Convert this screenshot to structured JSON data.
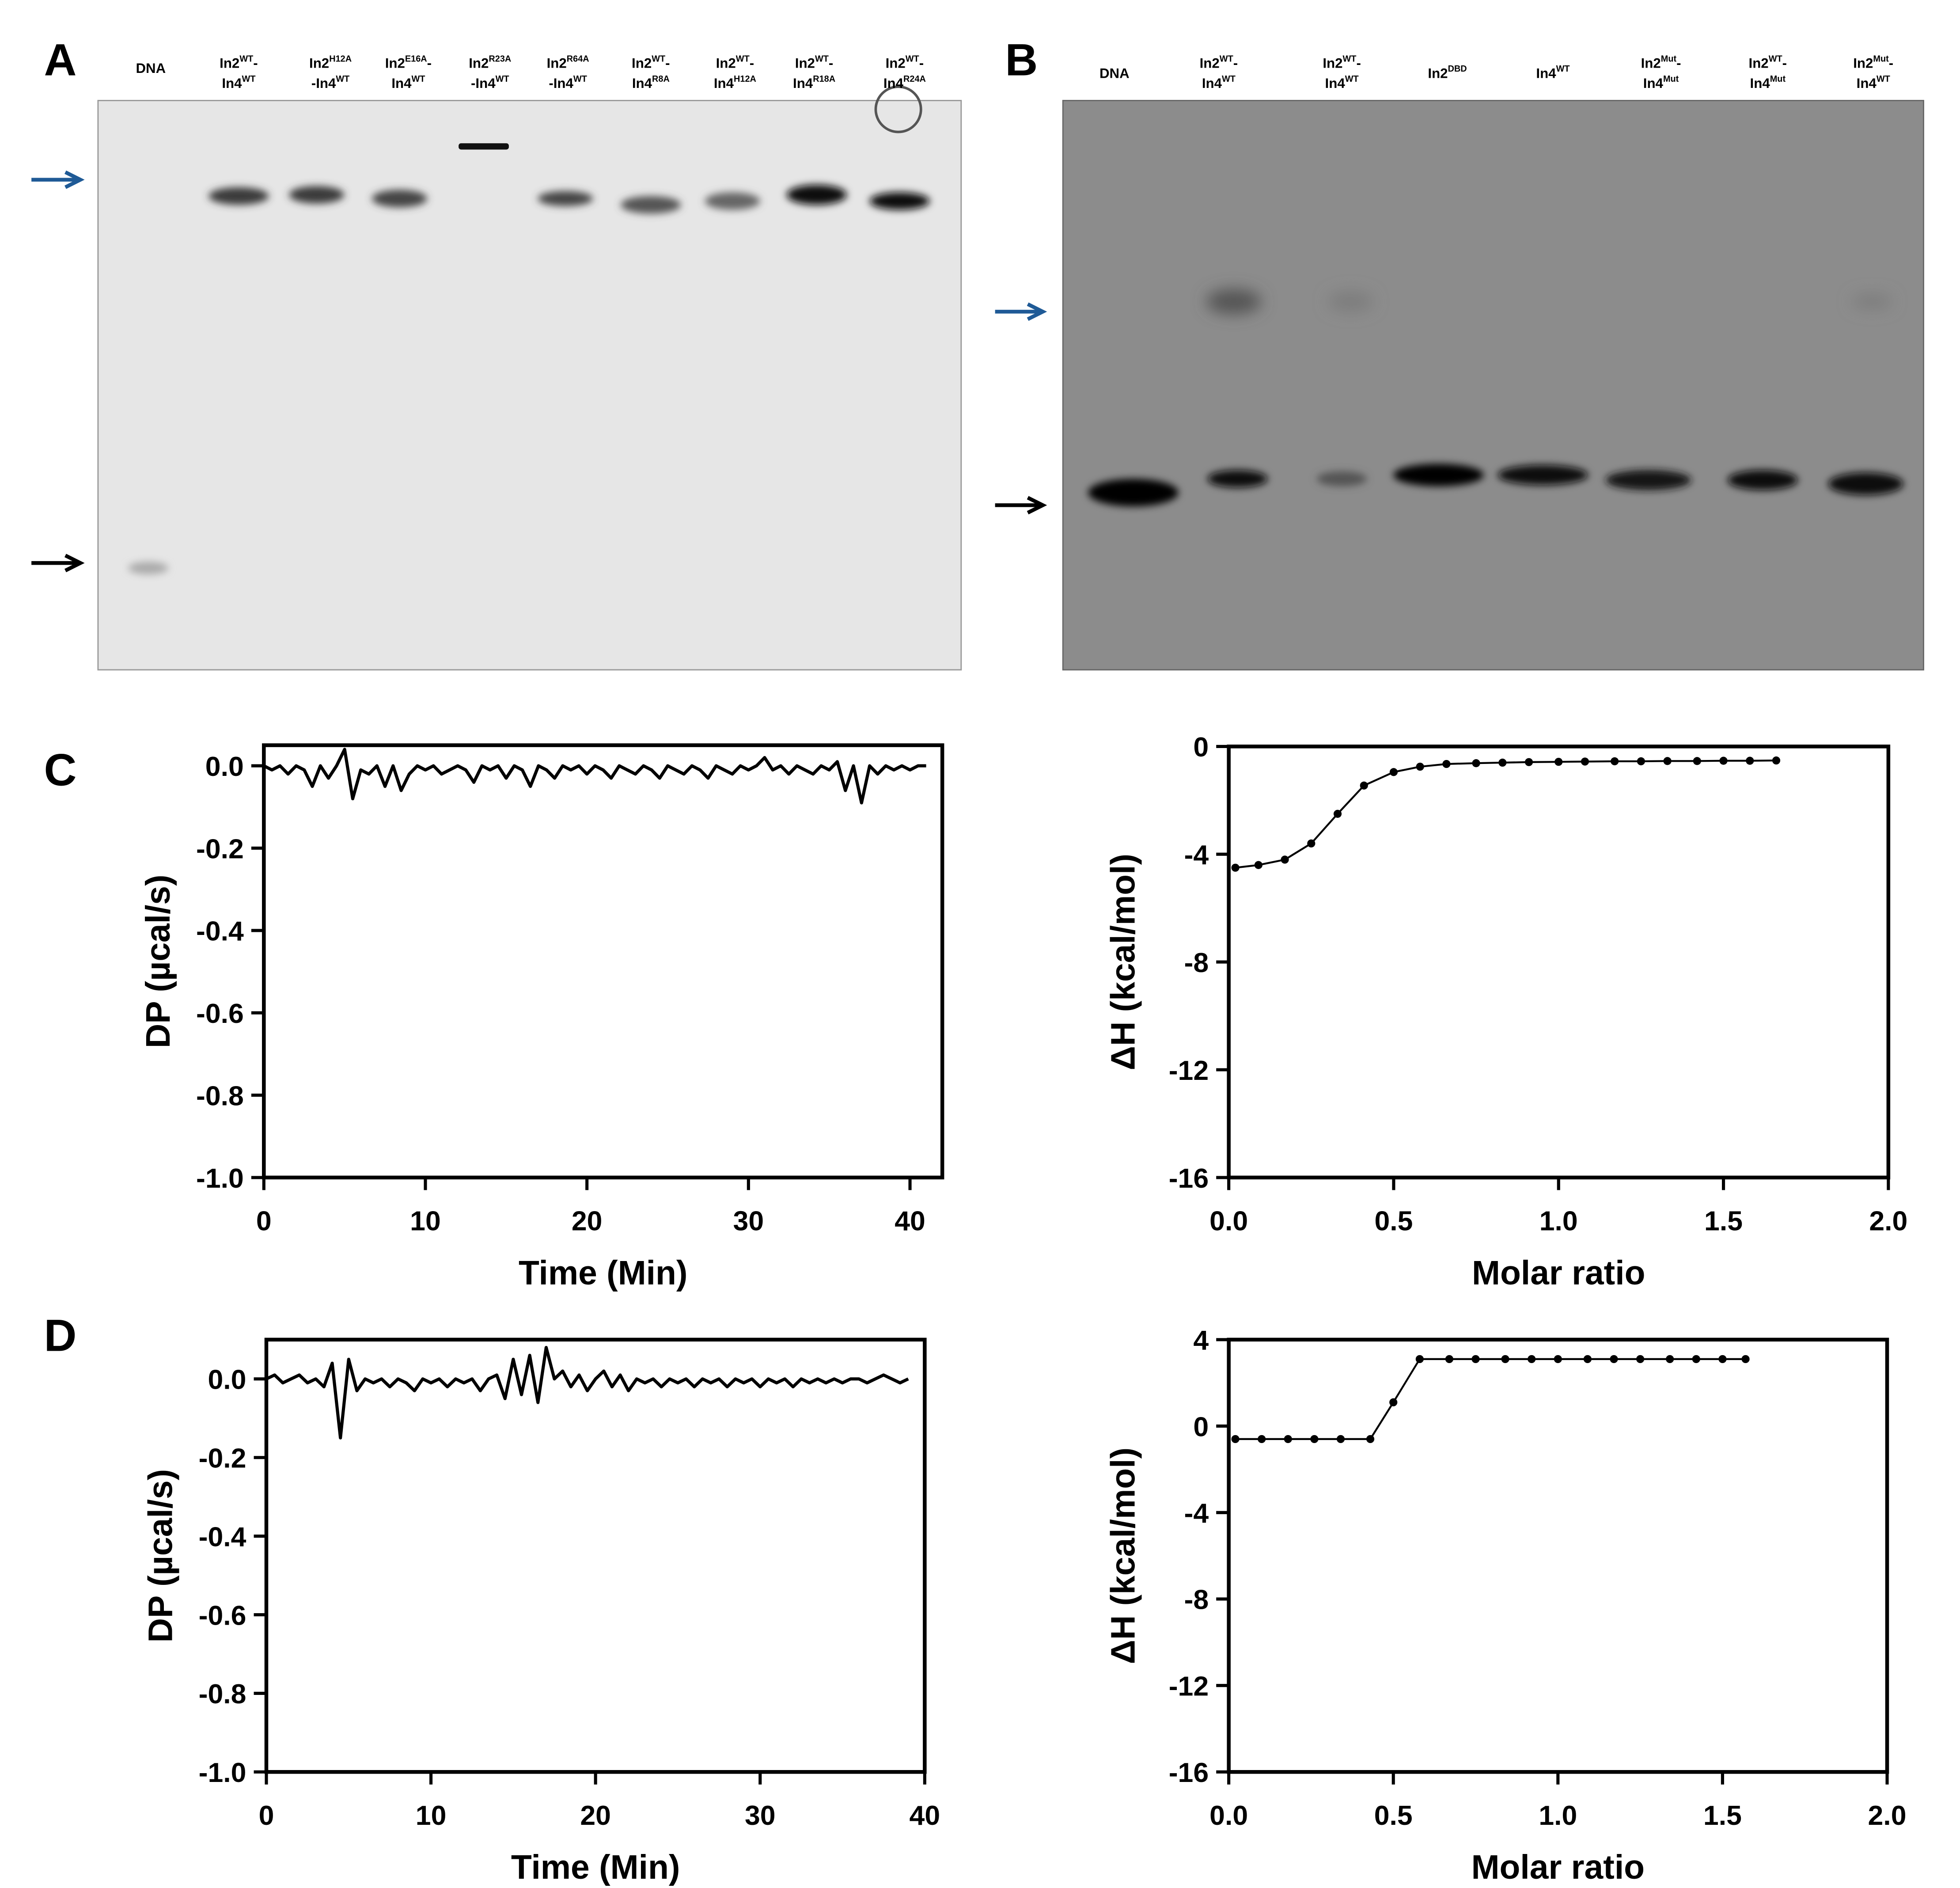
{
  "gel_a": {
    "label": "A",
    "lanes": [
      [
        [
          "DNA"
        ]
      ],
      [
        [
          "In2",
          "WT",
          "-"
        ],
        [
          "In4",
          "WT"
        ]
      ],
      [
        [
          "In2",
          "H12A"
        ],
        [
          "-In4",
          "WT"
        ]
      ],
      [
        [
          "In2",
          "E16A",
          "-"
        ],
        [
          "In4",
          "WT"
        ]
      ],
      [
        [
          "In2",
          "R23A"
        ],
        [
          "-In4",
          "WT"
        ]
      ],
      [
        [
          "In2",
          "R64A"
        ],
        [
          "-In4",
          "WT"
        ]
      ],
      [
        [
          "In2",
          "WT",
          "-"
        ],
        [
          "In4",
          "R8A"
        ]
      ],
      [
        [
          "In2",
          "WT",
          "-"
        ],
        [
          "In4",
          "H12A"
        ]
      ],
      [
        [
          "In2",
          "WT",
          "-"
        ],
        [
          "In4",
          "R18A"
        ]
      ],
      [
        [
          "In2",
          "WT",
          "-"
        ],
        [
          "In4",
          "R24A"
        ]
      ]
    ]
  },
  "gel_b": {
    "label": "B",
    "lanes": [
      [
        [
          "DNA"
        ]
      ],
      [
        [
          "In2",
          "WT",
          "-"
        ],
        [
          "In4",
          "WT"
        ]
      ],
      [
        [
          "In2",
          "WT",
          "-"
        ],
        [
          "In4",
          "WT"
        ]
      ],
      [
        [
          "In2",
          "DBD"
        ]
      ],
      [
        [
          "In4",
          "WT"
        ]
      ],
      [
        [
          "In2",
          "Mut",
          "-"
        ],
        [
          "In4",
          "Mut"
        ]
      ],
      [
        [
          "In2",
          "WT",
          "-"
        ],
        [
          "In4",
          "Mut"
        ]
      ],
      [
        [
          "In2",
          "Mut",
          "-"
        ],
        [
          "In4",
          "WT"
        ]
      ]
    ]
  },
  "panel_c": "C",
  "panel_d": "D",
  "chart_data": [
    {
      "type": "line",
      "xlabel": "Time (Min)",
      "ylabel": "DP (µcal/s)",
      "color": "#000000",
      "markers": false,
      "xlim": [
        0,
        42
      ],
      "xticks": [
        0,
        10,
        20,
        30,
        40
      ],
      "ylim": [
        -1,
        0.05
      ],
      "yticks": [
        {
          "value": -1,
          "label": "-1.0"
        },
        -0.8,
        -0.6,
        -0.4,
        -0.2,
        {
          "value": 0,
          "label": "0.0"
        }
      ],
      "x": [
        0,
        0.5,
        1,
        1.5,
        2,
        2.5,
        3,
        3.5,
        4,
        4.5,
        5,
        5.5,
        6,
        6.5,
        7,
        7.5,
        8,
        8.5,
        9,
        9.5,
        10,
        10.5,
        11,
        11.5,
        12,
        12.5,
        13,
        13.5,
        14,
        14.5,
        15,
        15.5,
        16,
        16.5,
        17,
        17.5,
        18,
        18.5,
        19,
        19.5,
        20,
        20.5,
        21,
        21.5,
        22,
        22.5,
        23,
        23.5,
        24,
        24.5,
        25,
        25.5,
        26,
        26.5,
        27,
        27.5,
        28,
        28.5,
        29,
        29.5,
        30,
        30.5,
        31,
        31.5,
        32,
        32.5,
        33,
        33.5,
        34,
        34.5,
        35,
        35.5,
        36,
        36.5,
        37,
        37.5,
        38,
        38.5,
        39,
        39.5,
        40,
        40.5,
        41
      ],
      "values": [
        0,
        -0.01,
        0,
        -0.02,
        0,
        -0.01,
        -0.05,
        0,
        -0.03,
        0,
        0.04,
        -0.08,
        -0.01,
        -0.02,
        0,
        -0.05,
        0,
        -0.06,
        -0.02,
        0,
        -0.01,
        0,
        -0.02,
        -0.01,
        0,
        -0.01,
        -0.04,
        0,
        -0.01,
        0,
        -0.03,
        0,
        -0.01,
        -0.05,
        0,
        -0.01,
        -0.03,
        0,
        -0.01,
        0,
        -0.02,
        0,
        -0.01,
        -0.03,
        0,
        -0.01,
        -0.02,
        0,
        -0.01,
        -0.03,
        0,
        -0.01,
        -0.02,
        0,
        -0.01,
        -0.03,
        0,
        -0.01,
        -0.02,
        0,
        -0.01,
        0,
        0.02,
        -0.01,
        0,
        -0.02,
        0,
        -0.01,
        -0.02,
        0,
        -0.01,
        0.01,
        -0.06,
        0,
        -0.09,
        0,
        -0.02,
        0,
        -0.01,
        0,
        -0.01,
        0,
        0
      ]
    },
    {
      "type": "line",
      "xlabel": "Molar ratio",
      "ylabel": "ΔH (kcal/mol)",
      "color": "#000000",
      "markers": true,
      "xlim": [
        0,
        2
      ],
      "xticks": [
        {
          "value": 0,
          "label": "0.0"
        },
        0.5,
        {
          "value": 1,
          "label": "1.0"
        },
        1.5,
        {
          "value": 2,
          "label": "2.0"
        }
      ],
      "ylim": [
        -16,
        0
      ],
      "yticks": [
        -16,
        -12,
        -8,
        -4,
        0
      ],
      "x": [
        0.02,
        0.09,
        0.17,
        0.25,
        0.33,
        0.41,
        0.5,
        0.58,
        0.66,
        0.75,
        0.83,
        0.91,
        1.0,
        1.08,
        1.17,
        1.25,
        1.33,
        1.42,
        1.5,
        1.58,
        1.66
      ],
      "values": [
        -4.5,
        -4.4,
        -4.2,
        -3.6,
        -2.5,
        -1.45,
        -0.95,
        -0.75,
        -0.65,
        -0.62,
        -0.6,
        -0.58,
        -0.57,
        -0.56,
        -0.55,
        -0.55,
        -0.54,
        -0.54,
        -0.53,
        -0.53,
        -0.52
      ]
    },
    {
      "type": "line",
      "xlabel": "Time (Min)",
      "ylabel": "DP (µcal/s)",
      "color": "#000000",
      "markers": false,
      "xlim": [
        0,
        40
      ],
      "xticks": [
        0,
        10,
        20,
        30,
        40
      ],
      "ylim": [
        -1,
        0.1
      ],
      "yticks": [
        {
          "value": -1,
          "label": "-1.0"
        },
        -0.8,
        -0.6,
        -0.4,
        -0.2,
        {
          "value": 0,
          "label": "0.0"
        }
      ],
      "x": [
        0,
        0.5,
        1,
        1.5,
        2,
        2.5,
        3,
        3.5,
        4,
        4.5,
        5,
        5.5,
        6,
        6.5,
        7,
        7.5,
        8,
        8.5,
        9,
        9.5,
        10,
        10.5,
        11,
        11.5,
        12,
        12.5,
        13,
        13.5,
        14,
        14.5,
        15,
        15.5,
        16,
        16.5,
        17,
        17.5,
        18,
        18.5,
        19,
        19.5,
        20,
        20.5,
        21,
        21.5,
        22,
        22.5,
        23,
        23.5,
        24,
        24.5,
        25,
        25.5,
        26,
        26.5,
        27,
        27.5,
        28,
        28.5,
        29,
        29.5,
        30,
        30.5,
        31,
        31.5,
        32,
        32.5,
        33,
        33.5,
        34,
        34.5,
        35,
        35.5,
        36,
        36.5,
        37,
        37.5,
        38,
        38.5,
        39
      ],
      "values": [
        0,
        0.01,
        -0.01,
        0,
        0.01,
        -0.01,
        0,
        -0.02,
        0.04,
        -0.15,
        0.05,
        -0.03,
        0,
        -0.01,
        0,
        -0.02,
        0,
        -0.01,
        -0.03,
        0,
        -0.01,
        0,
        -0.02,
        0,
        -0.01,
        0,
        -0.03,
        0,
        0.01,
        -0.05,
        0.05,
        -0.04,
        0.06,
        -0.06,
        0.08,
        0,
        0.02,
        -0.02,
        0.01,
        -0.03,
        0,
        0.02,
        -0.02,
        0.01,
        -0.03,
        0,
        -0.01,
        0,
        -0.02,
        0,
        -0.01,
        0,
        -0.02,
        0,
        -0.01,
        0,
        -0.02,
        0,
        -0.01,
        0,
        -0.02,
        0,
        -0.01,
        0,
        -0.02,
        0,
        -0.01,
        0,
        -0.01,
        0,
        -0.01,
        0,
        0,
        -0.01,
        0,
        0.01,
        0,
        -0.01,
        0
      ]
    },
    {
      "type": "line",
      "xlabel": "Molar ratio",
      "ylabel": "ΔH (kcal/mol)",
      "color": "#000000",
      "markers": true,
      "xlim": [
        0,
        2
      ],
      "xticks": [
        {
          "value": 0,
          "label": "0.0"
        },
        0.5,
        {
          "value": 1,
          "label": "1.0"
        },
        1.5,
        {
          "value": 2,
          "label": "2.0"
        }
      ],
      "ylim": [
        -16,
        4
      ],
      "yticks": [
        -16,
        -12,
        -8,
        -4,
        0,
        4
      ],
      "x": [
        0.02,
        0.1,
        0.18,
        0.26,
        0.34,
        0.43,
        0.5,
        0.58,
        0.67,
        0.75,
        0.84,
        0.92,
        1.0,
        1.09,
        1.17,
        1.25,
        1.34,
        1.42,
        1.5,
        1.57
      ],
      "values": [
        -0.6,
        -0.6,
        -0.6,
        -0.6,
        -0.6,
        -0.6,
        1.1,
        3.1,
        3.1,
        3.1,
        3.1,
        3.1,
        3.1,
        3.1,
        3.1,
        3.1,
        3.1,
        3.1,
        3.1,
        3.1
      ]
    }
  ]
}
